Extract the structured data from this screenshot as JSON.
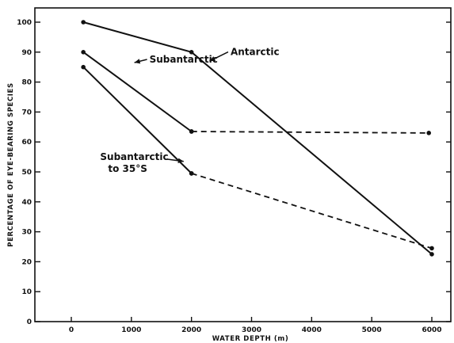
{
  "chart_data": {
    "type": "line",
    "xlabel": "WATER DEPTH (m)",
    "ylabel": "PERCENTAGE OF EYE-BEARING SPECIES",
    "xlim": [
      -500,
      6350
    ],
    "ylim": [
      0,
      105
    ],
    "x_ticks": [
      0,
      1000,
      2000,
      3000,
      4000,
      5000,
      6000
    ],
    "y_ticks": [
      0,
      10,
      20,
      30,
      40,
      50,
      60,
      70,
      80,
      90,
      100
    ],
    "y_tick_labels": [
      "0",
      "10",
      "20",
      "30",
      "40",
      "50",
      "60",
      "70",
      "80",
      "90",
      "100"
    ],
    "grid": false,
    "series": [
      {
        "name": "Antarctic",
        "style": "solid",
        "points": [
          [
            200,
            100
          ],
          [
            2000,
            90
          ],
          [
            6000,
            22.5
          ]
        ]
      },
      {
        "name": "Subantarctic",
        "style": "solid",
        "points": [
          [
            200,
            90
          ],
          [
            2000,
            63.5
          ]
        ]
      },
      {
        "name": "Subantarctic",
        "style": "dashed",
        "points": [
          [
            2000,
            63.5
          ],
          [
            5950,
            63
          ]
        ]
      },
      {
        "name": "Subantarctic to 35°S",
        "style": "solid",
        "points": [
          [
            200,
            85
          ],
          [
            2000,
            49.5
          ]
        ]
      },
      {
        "name": "Subantarctic to 35°S",
        "style": "dashed",
        "points": [
          [
            2000,
            49.5
          ],
          [
            6000,
            24.5
          ]
        ]
      }
    ],
    "annotations": [
      {
        "text": "Antarctic",
        "arrow_to": [
          2300,
          87
        ],
        "text_at": [
          2650,
          89
        ]
      },
      {
        "text": "Subantarctic",
        "arrow_to": [
          1050,
          86.5
        ],
        "text_at": [
          1300,
          86.5
        ]
      },
      {
        "text": "Subantarctic",
        "text2": "to 35°S",
        "arrow_to": [
          1870,
          53.5
        ],
        "text_at": [
          480,
          54
        ]
      }
    ]
  }
}
